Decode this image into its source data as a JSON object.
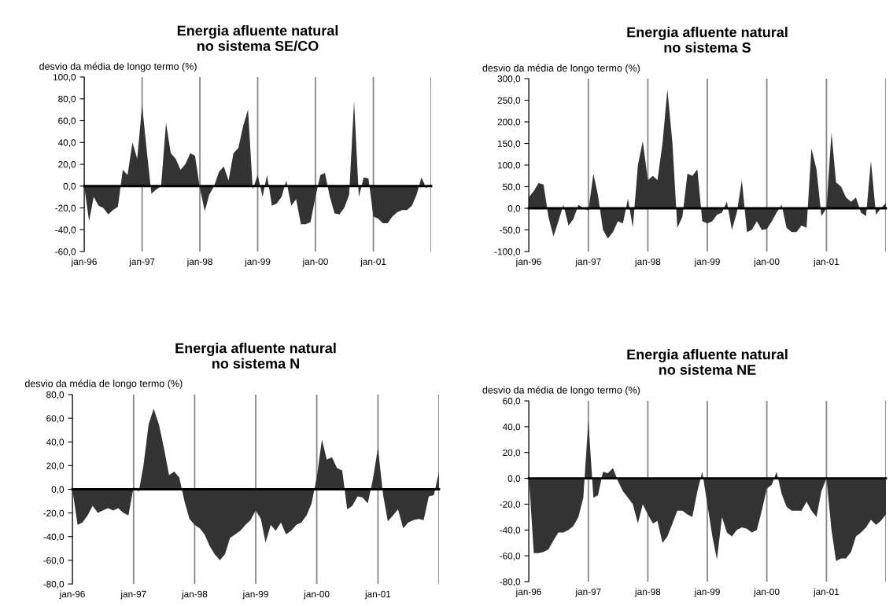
{
  "chart_data": [
    {
      "type": "area",
      "title": "Energia afluente natural\nno sistema SE/CO",
      "ylabel": "desvio da média de longo termo (%)",
      "x": [
        "1996-01",
        "1996-02",
        "1996-03",
        "1996-04",
        "1996-05",
        "1996-06",
        "1996-07",
        "1996-08",
        "1996-09",
        "1996-10",
        "1996-11",
        "1996-12",
        "1997-01",
        "1997-02",
        "1997-03",
        "1997-04",
        "1997-05",
        "1997-06",
        "1997-07",
        "1997-08",
        "1997-09",
        "1997-10",
        "1997-11",
        "1997-12",
        "1998-01",
        "1998-02",
        "1998-03",
        "1998-04",
        "1998-05",
        "1998-06",
        "1998-07",
        "1998-08",
        "1998-09",
        "1998-10",
        "1998-11",
        "1998-12",
        "1999-01",
        "1999-02",
        "1999-03",
        "1999-04",
        "1999-05",
        "1999-06",
        "1999-07",
        "1999-08",
        "1999-09",
        "1999-10",
        "1999-11",
        "1999-12",
        "2000-01",
        "2000-02",
        "2000-03",
        "2000-04",
        "2000-05",
        "2000-06",
        "2000-07",
        "2000-08",
        "2000-09",
        "2000-10",
        "2000-11",
        "2000-12",
        "2001-01",
        "2001-02",
        "2001-03",
        "2001-04",
        "2001-05",
        "2001-06",
        "2001-07",
        "2001-08",
        "2001-09",
        "2001-10",
        "2001-11",
        "2001-12",
        "2002-01"
      ],
      "series": [
        {
          "color": "#333333",
          "values": [
            0,
            -32,
            -10,
            -18,
            -20,
            -26,
            -22,
            -19,
            15,
            10,
            40,
            25,
            74,
            30,
            -7,
            -3,
            0,
            58,
            30,
            25,
            15,
            20,
            30,
            28,
            -2,
            -23,
            -8,
            0,
            13,
            18,
            5,
            30,
            35,
            55,
            70,
            -3,
            10,
            -10,
            10,
            -18,
            -16,
            -10,
            5,
            -18,
            -12,
            -35,
            -35,
            -33,
            -10,
            10,
            12,
            -10,
            -25,
            -26,
            -20,
            -8,
            78,
            -10,
            8,
            7,
            -28,
            -30,
            -34,
            -34,
            -28,
            -24,
            -22,
            -22,
            -18,
            -8,
            8,
            -2,
            2
          ]
        }
      ],
      "xlim": [
        "1996-01",
        "2002-01"
      ],
      "xticks": [
        {
          "value": "1996-01",
          "label": "jan-96"
        },
        {
          "value": "1997-01",
          "label": "jan-97"
        },
        {
          "value": "1998-01",
          "label": "jan-98"
        },
        {
          "value": "1999-01",
          "label": "jan-99"
        },
        {
          "value": "2000-01",
          "label": "jan-00"
        },
        {
          "value": "2001-01",
          "label": "jan-01"
        },
        {
          "value": "2002-01",
          "label": null
        }
      ],
      "ylim": [
        -60,
        100
      ],
      "yticks": [
        {
          "value": -60,
          "label": "-60,0"
        },
        {
          "value": -40,
          "label": "-40,0"
        },
        {
          "value": -20,
          "label": "-20,0"
        },
        {
          "value": 0,
          "label": "0,0"
        },
        {
          "value": 20,
          "label": "20,0"
        },
        {
          "value": 40,
          "label": "40,0"
        },
        {
          "value": 60,
          "label": "60,0"
        },
        {
          "value": 80,
          "label": "80,0"
        },
        {
          "value": 100,
          "label": "100,0"
        }
      ],
      "grid": "x",
      "legend": false
    },
    {
      "type": "area",
      "title": "Energia afluente natural\nno sistema S",
      "ylabel": "desvio da média de longo termo (%)",
      "x": [
        "1996-01",
        "1996-02",
        "1996-03",
        "1996-04",
        "1996-05",
        "1996-06",
        "1996-07",
        "1996-08",
        "1996-09",
        "1996-10",
        "1996-11",
        "1996-12",
        "1997-01",
        "1997-02",
        "1997-03",
        "1997-04",
        "1997-05",
        "1997-06",
        "1997-07",
        "1997-08",
        "1997-09",
        "1997-10",
        "1997-11",
        "1997-12",
        "1998-01",
        "1998-02",
        "1998-03",
        "1998-04",
        "1998-05",
        "1998-06",
        "1998-07",
        "1998-08",
        "1998-09",
        "1998-10",
        "1998-11",
        "1998-12",
        "1999-01",
        "1999-02",
        "1999-03",
        "1999-04",
        "1999-05",
        "1999-06",
        "1999-07",
        "1999-08",
        "1999-09",
        "1999-10",
        "1999-11",
        "1999-12",
        "2000-01",
        "2000-02",
        "2000-03",
        "2000-04",
        "2000-05",
        "2000-06",
        "2000-07",
        "2000-08",
        "2000-09",
        "2000-10",
        "2000-11",
        "2000-12",
        "2001-01",
        "2001-02",
        "2001-03",
        "2001-04",
        "2001-05",
        "2001-06",
        "2001-07",
        "2001-08",
        "2001-09",
        "2001-10",
        "2001-11",
        "2001-12",
        "2002-01"
      ],
      "series": [
        {
          "color": "#333333",
          "values": [
            25,
            40,
            58,
            55,
            -20,
            -65,
            -30,
            8,
            -40,
            -25,
            8,
            0,
            -5,
            80,
            30,
            -50,
            -70,
            -55,
            -30,
            -35,
            22,
            -45,
            100,
            155,
            65,
            75,
            65,
            150,
            275,
            150,
            -45,
            -20,
            80,
            75,
            90,
            -30,
            -35,
            -30,
            -15,
            -10,
            15,
            -50,
            -10,
            65,
            -55,
            -50,
            -30,
            -50,
            -48,
            -30,
            -10,
            8,
            -45,
            -55,
            -55,
            -40,
            -45,
            138,
            90,
            -18,
            0,
            175,
            60,
            50,
            25,
            15,
            25,
            -10,
            -18,
            110,
            -15,
            0,
            12
          ]
        }
      ],
      "xlim": [
        "1996-01",
        "2002-01"
      ],
      "xticks": [
        {
          "value": "1996-01",
          "label": "jan-96"
        },
        {
          "value": "1997-01",
          "label": "jan-97"
        },
        {
          "value": "1998-01",
          "label": "jan-98"
        },
        {
          "value": "1999-01",
          "label": "jan-99"
        },
        {
          "value": "2000-01",
          "label": "jan-00"
        },
        {
          "value": "2001-01",
          "label": "jan-01"
        },
        {
          "value": "2002-01",
          "label": null
        }
      ],
      "ylim": [
        -100,
        300
      ],
      "yticks": [
        {
          "value": -100,
          "label": "-100,0"
        },
        {
          "value": -50,
          "label": "-50,0"
        },
        {
          "value": 0,
          "label": "0,0"
        },
        {
          "value": 50,
          "label": "50,0"
        },
        {
          "value": 100,
          "label": "100,0"
        },
        {
          "value": 150,
          "label": "150,0"
        },
        {
          "value": 200,
          "label": "200,0"
        },
        {
          "value": 250,
          "label": "250,0"
        },
        {
          "value": 300,
          "label": "300,0"
        }
      ],
      "grid": "x",
      "legend": false
    },
    {
      "type": "area",
      "title": "Energia afluente natural\nno sistema N",
      "ylabel": "desvio da média de longo termo (%)",
      "x": [
        "1996-01",
        "1996-02",
        "1996-03",
        "1996-04",
        "1996-05",
        "1996-06",
        "1996-07",
        "1996-08",
        "1996-09",
        "1996-10",
        "1996-11",
        "1996-12",
        "1997-01",
        "1997-02",
        "1997-03",
        "1997-04",
        "1997-05",
        "1997-06",
        "1997-07",
        "1997-08",
        "1997-09",
        "1997-10",
        "1997-11",
        "1997-12",
        "1998-01",
        "1998-02",
        "1998-03",
        "1998-04",
        "1998-05",
        "1998-06",
        "1998-07",
        "1998-08",
        "1998-09",
        "1998-10",
        "1998-11",
        "1998-12",
        "1999-01",
        "1999-02",
        "1999-03",
        "1999-04",
        "1999-05",
        "1999-06",
        "1999-07",
        "1999-08",
        "1999-09",
        "1999-10",
        "1999-11",
        "1999-12",
        "2000-01",
        "2000-02",
        "2000-03",
        "2000-04",
        "2000-05",
        "2000-06",
        "2000-07",
        "2000-08",
        "2000-09",
        "2000-10",
        "2000-11",
        "2000-12",
        "2001-01",
        "2001-02",
        "2001-03",
        "2001-04",
        "2001-05",
        "2001-06",
        "2001-07",
        "2001-08",
        "2001-09",
        "2001-10",
        "2001-11",
        "2001-12",
        "2002-01"
      ],
      "series": [
        {
          "color": "#333333",
          "values": [
            0,
            -30,
            -28,
            -22,
            -14,
            -20,
            -18,
            -16,
            -18,
            -16,
            -20,
            -22,
            2,
            -2,
            20,
            55,
            68,
            55,
            35,
            12,
            15,
            10,
            -10,
            -25,
            -30,
            -33,
            -38,
            -48,
            -55,
            -60,
            -55,
            -41,
            -38,
            -35,
            -30,
            -26,
            -18,
            -25,
            -45,
            -30,
            -35,
            -28,
            -38,
            -35,
            -30,
            -28,
            -22,
            -12,
            10,
            42,
            25,
            27,
            18,
            16,
            -17,
            -14,
            -6,
            -7,
            -12,
            8,
            35,
            -5,
            -27,
            -22,
            -17,
            -33,
            -28,
            -26,
            -25,
            -26,
            -6,
            -5,
            15
          ]
        }
      ],
      "xlim": [
        "1996-01",
        "2002-01"
      ],
      "xticks": [
        {
          "value": "1996-01",
          "label": "jan-96"
        },
        {
          "value": "1997-01",
          "label": "jan-97"
        },
        {
          "value": "1998-01",
          "label": "jan-98"
        },
        {
          "value": "1999-01",
          "label": "jan-99"
        },
        {
          "value": "2000-01",
          "label": "jan-00"
        },
        {
          "value": "2001-01",
          "label": "jan-01"
        },
        {
          "value": "2002-01",
          "label": null
        }
      ],
      "ylim": [
        -80,
        80
      ],
      "yticks": [
        {
          "value": -80,
          "label": "-80,0"
        },
        {
          "value": -60,
          "label": "-60,0"
        },
        {
          "value": -40,
          "label": "-40,0"
        },
        {
          "value": -20,
          "label": "-20,0"
        },
        {
          "value": 0,
          "label": "0,0"
        },
        {
          "value": 20,
          "label": "20,0"
        },
        {
          "value": 40,
          "label": "40,0"
        },
        {
          "value": 60,
          "label": "60,0"
        },
        {
          "value": 80,
          "label": "80,0"
        }
      ],
      "grid": "x",
      "legend": false
    },
    {
      "type": "area",
      "title": "Energia afluente natural\nno sistema NE",
      "ylabel": "desvio da média de longo termo (%)",
      "x": [
        "1996-01",
        "1996-02",
        "1996-03",
        "1996-04",
        "1996-05",
        "1996-06",
        "1996-07",
        "1996-08",
        "1996-09",
        "1996-10",
        "1996-11",
        "1996-12",
        "1997-01",
        "1997-02",
        "1997-03",
        "1997-04",
        "1997-05",
        "1997-06",
        "1997-07",
        "1997-08",
        "1997-09",
        "1997-10",
        "1997-11",
        "1997-12",
        "1998-01",
        "1998-02",
        "1998-03",
        "1998-04",
        "1998-05",
        "1998-06",
        "1998-07",
        "1998-08",
        "1998-09",
        "1998-10",
        "1998-11",
        "1998-12",
        "1999-01",
        "1999-02",
        "1999-03",
        "1999-04",
        "1999-05",
        "1999-06",
        "1999-07",
        "1999-08",
        "1999-09",
        "1999-10",
        "1999-11",
        "1999-12",
        "2000-01",
        "2000-02",
        "2000-03",
        "2000-04",
        "2000-05",
        "2000-06",
        "2000-07",
        "2000-08",
        "2000-09",
        "2000-10",
        "2000-11",
        "2000-12",
        "2001-01",
        "2001-02",
        "2001-03",
        "2001-04",
        "2001-05",
        "2001-06",
        "2001-07",
        "2001-08",
        "2001-09",
        "2001-10",
        "2001-11",
        "2001-12",
        "2002-01"
      ],
      "series": [
        {
          "color": "#333333",
          "values": [
            4,
            -58,
            -58,
            -57,
            -55,
            -48,
            -42,
            -42,
            -40,
            -37,
            -30,
            -15,
            45,
            -15,
            -13,
            5,
            4,
            8,
            -2,
            -10,
            -15,
            -20,
            -35,
            -20,
            -28,
            -35,
            -33,
            -50,
            -45,
            -35,
            -25,
            -25,
            -28,
            -30,
            -10,
            5,
            -20,
            -45,
            -63,
            -30,
            -42,
            -45,
            -40,
            -38,
            -39,
            -42,
            -40,
            -25,
            -8,
            -5,
            5,
            -12,
            -22,
            -25,
            -25,
            -25,
            -18,
            -25,
            -30,
            -10,
            0,
            -40,
            -64,
            -62,
            -62,
            -57,
            -45,
            -42,
            -38,
            -32,
            -36,
            -33,
            -28
          ]
        }
      ],
      "xlim": [
        "1996-01",
        "2002-01"
      ],
      "xticks": [
        {
          "value": "1996-01",
          "label": "jan-96"
        },
        {
          "value": "1997-01",
          "label": "jan-97"
        },
        {
          "value": "1998-01",
          "label": "jan-98"
        },
        {
          "value": "1999-01",
          "label": "jan-99"
        },
        {
          "value": "2000-01",
          "label": "jan-00"
        },
        {
          "value": "2001-01",
          "label": "jan-01"
        },
        {
          "value": "2002-01",
          "label": null
        }
      ],
      "ylim": [
        -80,
        60
      ],
      "yticks": [
        {
          "value": -80,
          "label": "-80,0"
        },
        {
          "value": -60,
          "label": "-60,0"
        },
        {
          "value": -40,
          "label": "-40,0"
        },
        {
          "value": -20,
          "label": "-20,0"
        },
        {
          "value": 0,
          "label": "0,0"
        },
        {
          "value": 20,
          "label": "20,0"
        },
        {
          "value": 40,
          "label": "40,0"
        },
        {
          "value": 60,
          "label": "60,0"
        }
      ],
      "grid": "x",
      "legend": false
    }
  ]
}
